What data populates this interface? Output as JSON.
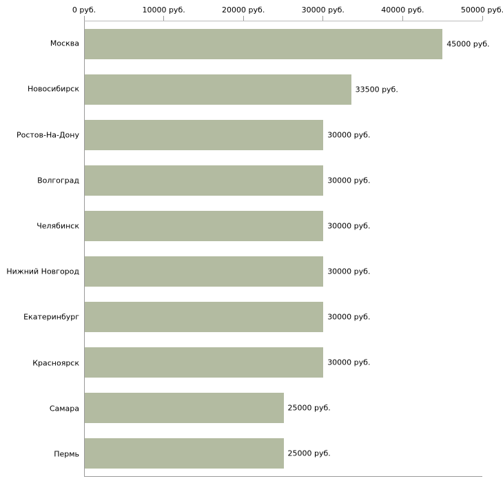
{
  "chart_data": {
    "type": "bar",
    "orientation": "horizontal",
    "title": "",
    "xlabel": "",
    "ylabel": "",
    "xlim": [
      0,
      50000
    ],
    "x_ticks": [
      0,
      10000,
      20000,
      30000,
      40000,
      50000
    ],
    "x_tick_labels": [
      "0 руб.",
      "10000 руб.",
      "20000 руб.",
      "30000 руб.",
      "40000 руб.",
      "50000 руб."
    ],
    "categories": [
      "Москва",
      "Новосибирск",
      "Ростов-На-Дону",
      "Волгоград",
      "Челябинск",
      "Нижний Новгород",
      "Екатеринбург",
      "Красноярск",
      "Самара",
      "Пермь"
    ],
    "values": [
      45000,
      33500,
      30000,
      30000,
      30000,
      30000,
      30000,
      30000,
      25000,
      25000
    ],
    "value_labels": [
      "45000 руб.",
      "33500 руб.",
      "30000 руб.",
      "30000 руб.",
      "30000 руб.",
      "30000 руб.",
      "30000 руб.",
      "30000 руб.",
      "25000 руб.",
      "25000 руб."
    ],
    "bar_color": "#b3bba1",
    "axis_color": "#999999",
    "text_color": "#000000",
    "grid": false,
    "legend": false
  }
}
